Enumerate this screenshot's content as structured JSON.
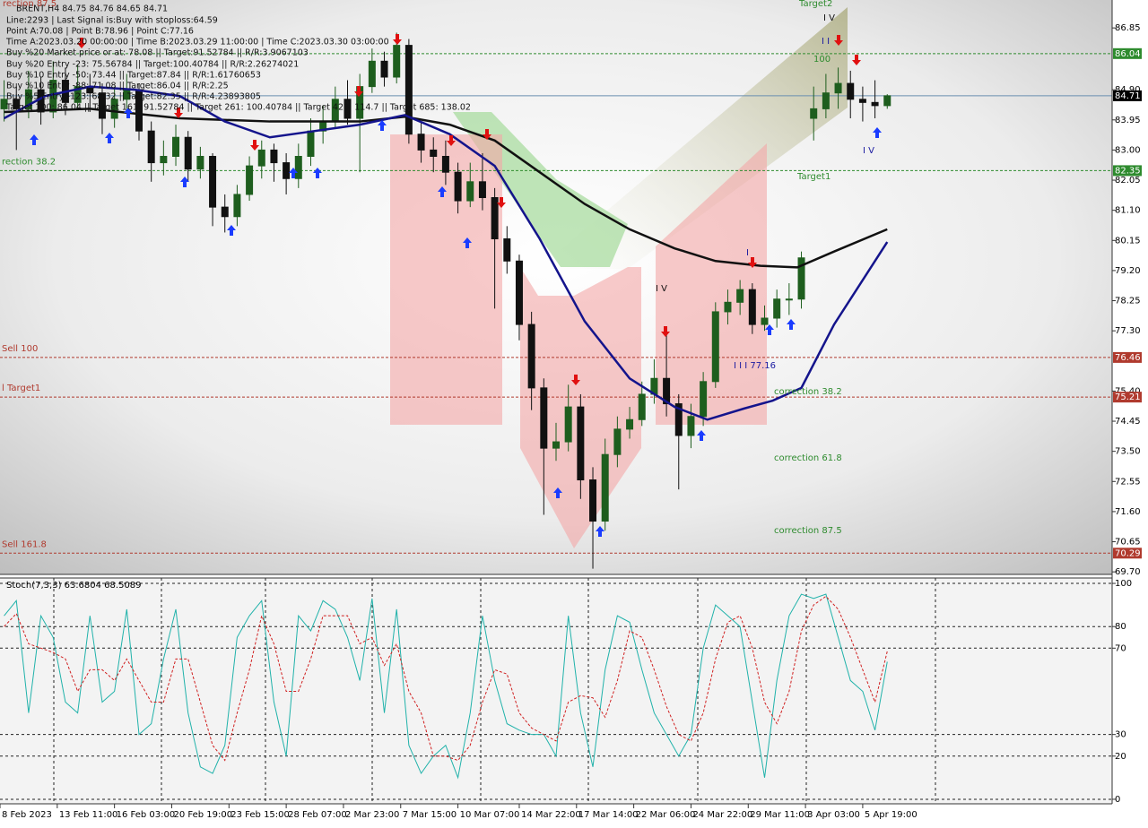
{
  "header": {
    "info": [
      "BRENT,H4  84.75 84.76 84.65 84.71",
      "Line:2293 | Last Signal is:Buy with stoploss:64.59",
      "Point A:70.08 | Point B:78.96 | Point C:77.16",
      "Time A:2023.03.20 00:00:00 | Time B:2023.03.29 11:00:00 | Time C:2023.03.30 03:00:00",
      "Buy %20 Market price or at: 78.08 || Target:91.52784 || R/R:3.9067103",
      "Buy %20 Entry -23: 75.56784 || Target:100.40784 || R/R:2.26274021",
      "Buy %10 Entry -50: 73.44 || Target:87.84 || R/R:1.61760653",
      "Buy %10 Entry -88: 71.08 || Target:86.04 || R/R:2.25",
      "Buy %5 Entry -123: 68.32 || Target:82.35 || R/R:4.23893805",
      "Target 100: 86.04 || Target 161: 91.52784 || Target 261: 100.40784 || Target 423: 114.7 || Target 685: 138.02"
    ]
  },
  "chart_data": [
    {
      "type": "candlestick",
      "x": [
        1,
        4,
        7,
        10,
        13,
        16,
        19,
        22,
        25,
        28,
        31,
        34,
        37,
        40,
        43,
        46,
        49,
        52,
        55,
        58,
        61,
        64,
        67,
        70,
        73,
        76,
        79,
        82,
        85,
        88,
        91,
        94,
        97,
        100,
        103,
        106,
        109,
        112,
        115,
        118,
        121,
        124,
        127,
        130,
        133,
        136,
        139,
        142,
        145,
        148,
        151,
        154,
        157,
        160,
        163,
        166,
        169,
        172,
        175,
        178,
        181,
        184,
        187,
        190,
        193,
        196,
        199,
        202,
        205,
        208,
        211,
        214,
        217
      ],
      "open": [
        84.3,
        84.6,
        84.3,
        84.9,
        84.2,
        85.2,
        84.5,
        85.0,
        84.8,
        84.0,
        84.6,
        84.9,
        83.6,
        82.6,
        82.8,
        83.4,
        82.4,
        82.8,
        81.2,
        80.9,
        81.6,
        82.5,
        83.0,
        82.6,
        82.1,
        82.8,
        83.6,
        83.9,
        84.6,
        84.0,
        85.0,
        85.8,
        85.3,
        86.3,
        83.5,
        83.0,
        82.8,
        82.3,
        81.4,
        82.0,
        81.5,
        80.2,
        79.5,
        77.5,
        75.5,
        73.6,
        73.8,
        74.9,
        72.6,
        71.3,
        73.4,
        74.2,
        74.5,
        75.3,
        75.8,
        75.0,
        74.0,
        74.6,
        75.7,
        77.9,
        78.2,
        78.6,
        77.5,
        77.7,
        78.3,
        78.3,
        84.0,
        84.3,
        84.8,
        85.1,
        84.6,
        84.5,
        84.4
      ],
      "high": [
        85.2,
        85.0,
        85.5,
        85.3,
        85.8,
        85.6,
        85.7,
        85.4,
        85.1,
        85.0,
        85.4,
        85.1,
        83.9,
        83.3,
        83.8,
        83.6,
        83.1,
        82.9,
        81.6,
        81.9,
        82.8,
        83.3,
        83.2,
        82.9,
        83.2,
        84.0,
        84.4,
        85.0,
        85.2,
        85.4,
        86.2,
        86.1,
        86.7,
        86.5,
        83.9,
        83.4,
        83.3,
        82.6,
        82.6,
        82.9,
        81.8,
        80.6,
        79.7,
        77.9,
        75.8,
        74.4,
        75.6,
        75.3,
        73.0,
        73.9,
        74.6,
        74.9,
        75.7,
        76.4,
        77.2,
        75.3,
        75.0,
        76.0,
        78.2,
        78.6,
        78.9,
        78.8,
        78.1,
        78.6,
        78.8,
        79.8,
        85.0,
        85.4,
        85.6,
        85.5,
        85.0,
        85.2,
        84.76
      ],
      "low": [
        83.9,
        83.0,
        84.0,
        83.8,
        84.0,
        84.1,
        84.3,
        84.2,
        83.5,
        83.7,
        84.3,
        83.3,
        82.0,
        82.2,
        82.5,
        82.0,
        82.1,
        80.6,
        80.4,
        80.6,
        81.4,
        82.1,
        82.0,
        81.6,
        81.8,
        82.5,
        83.2,
        83.7,
        83.8,
        82.3,
        84.8,
        85.0,
        85.1,
        83.2,
        82.6,
        82.3,
        81.9,
        81.0,
        81.2,
        81.1,
        78.0,
        79.1,
        77.0,
        74.8,
        71.5,
        73.2,
        73.5,
        72.0,
        69.8,
        71.0,
        73.0,
        73.9,
        74.3,
        75.0,
        74.6,
        72.3,
        73.6,
        74.3,
        75.5,
        77.5,
        77.8,
        77.2,
        77.3,
        77.4,
        77.8,
        78.0,
        83.3,
        84.0,
        84.3,
        84.0,
        83.9,
        84.0,
        84.3
      ],
      "close": [
        84.6,
        84.3,
        84.9,
        84.2,
        85.2,
        84.5,
        85.0,
        84.8,
        84.0,
        84.6,
        84.9,
        83.6,
        82.6,
        82.8,
        83.4,
        82.4,
        82.8,
        81.2,
        80.9,
        81.6,
        82.5,
        83.0,
        82.6,
        82.1,
        82.8,
        83.6,
        83.9,
        84.6,
        84.0,
        85.0,
        85.8,
        85.3,
        86.3,
        83.5,
        83.0,
        82.8,
        82.3,
        81.4,
        82.0,
        81.5,
        80.2,
        79.5,
        77.5,
        75.5,
        73.6,
        73.8,
        74.9,
        72.6,
        71.3,
        73.4,
        74.2,
        74.5,
        75.3,
        75.8,
        75.0,
        74.0,
        74.6,
        75.7,
        77.9,
        78.2,
        78.6,
        77.5,
        77.7,
        78.3,
        78.3,
        79.6,
        84.3,
        84.8,
        85.1,
        84.6,
        84.5,
        84.4,
        84.71
      ],
      "up_color": "#1e5e1e",
      "down_color": "#111111",
      "series": [
        {
          "color": "#111111",
          "x": [
            1,
            22,
            44,
            66,
            88,
            99,
            110,
            121,
            132,
            143,
            154,
            165,
            175,
            186,
            195,
            204,
            217
          ],
          "values": [
            84.2,
            84.3,
            84.0,
            83.9,
            83.9,
            84.05,
            83.8,
            83.3,
            82.3,
            81.3,
            80.5,
            79.9,
            79.5,
            79.35,
            79.3,
            79.8,
            80.5
          ]
        },
        {
          "color": "#14148c",
          "x": [
            1,
            11,
            22,
            33,
            44,
            55,
            66,
            77,
            88,
            99,
            110,
            121,
            132,
            143,
            154,
            165,
            173,
            182,
            189,
            196,
            204,
            217
          ],
          "values": [
            84.0,
            84.7,
            85.0,
            84.9,
            84.7,
            83.9,
            83.4,
            83.6,
            83.8,
            84.1,
            83.5,
            82.5,
            80.2,
            77.6,
            75.8,
            74.9,
            74.5,
            74.85,
            75.1,
            75.5,
            77.5,
            80.1
          ]
        }
      ],
      "levels": [
        {
          "value": 86.04,
          "color": "#2e8b2e",
          "box": "#2e8b2e"
        },
        {
          "value": 84.71,
          "color": "#6a8fb0",
          "box": "#000000"
        },
        {
          "value": 82.35,
          "color": "#2e8b2e",
          "box": "#2e8b2e",
          "text": "rection 38.2"
        },
        {
          "value": 76.46,
          "color": "#b03a2e",
          "box": "#b03a2e",
          "text": "Sell 100"
        },
        {
          "value": 75.21,
          "color": "#b03a2e",
          "box": "#b03a2e",
          "text": "l Target1"
        },
        {
          "value": 70.29,
          "color": "#b03a2e",
          "box": "#b03a2e",
          "text": "Sell 161.8"
        }
      ],
      "annotations": [
        {
          "text": "Target2",
          "color": "#2e8b2e"
        },
        {
          "text": "I V",
          "color": "#111111"
        },
        {
          "text": "I I",
          "color": "#1a1aa0"
        },
        {
          "text": "100",
          "color": "#2e8b2e"
        },
        {
          "text": "Target1",
          "color": "#2e8b2e"
        },
        {
          "text": "I V",
          "color": "#1a1aa0"
        },
        {
          "text": "I",
          "color": "#1a1aa0"
        },
        {
          "text": "I V",
          "color": "#111111"
        },
        {
          "text": "I I I 77.16",
          "color": "#1a1aa0"
        },
        {
          "text": "correction 38.2",
          "color": "#2e8b2e"
        },
        {
          "text": "correction 61.8",
          "color": "#2e8b2e"
        },
        {
          "text": "correction 87.5",
          "color": "#2e8b2e"
        },
        {
          "text": "rection 87.5",
          "color": "#b03a2e"
        }
      ],
      "xlim": [
        0,
        272
      ],
      "ylim": [
        69.62,
        87.73
      ],
      "yticks": [
        86.85,
        {
          "value": 84.9,
          "label": "84.90"
        },
        83.95,
        {
          "value": 83,
          "label": "83.00"
        },
        82.05,
        {
          "value": 81.1,
          "label": "81.10"
        },
        80.15,
        {
          "value": 79.2,
          "label": "79.20"
        },
        78.25,
        {
          "value": 77.3,
          "label": "77.30"
        },
        {
          "value": 75.4,
          "label": "75.40"
        },
        74.45,
        {
          "value": 73.5,
          "label": "73.50"
        },
        72.55,
        {
          "value": 71.6,
          "label": "71.60"
        },
        70.65,
        {
          "value": 69.7,
          "label": "69.70"
        }
      ],
      "xticks": [
        {
          "value": 0,
          "label": "8 Feb 2023"
        },
        {
          "value": 14,
          "label": "13 Feb 11:00"
        },
        {
          "value": 28,
          "label": "16 Feb 03:00"
        },
        {
          "value": 42,
          "label": "20 Feb 19:00"
        },
        {
          "value": 56,
          "label": "23 Feb 15:00"
        },
        {
          "value": 70,
          "label": "28 Feb 07:00"
        },
        {
          "value": 84,
          "label": "2 Mar 23:00"
        },
        {
          "value": 98,
          "label": "7 Mar 15:00"
        },
        {
          "value": 112,
          "label": "10 Mar 07:00"
        },
        {
          "value": 127,
          "label": "14 Mar 22:00"
        },
        {
          "value": 141,
          "label": "17 Mar 14:00"
        },
        {
          "value": 155,
          "label": "22 Mar 06:00"
        },
        {
          "value": 169,
          "label": "24 Mar 22:00"
        },
        {
          "value": 183,
          "label": "29 Mar 11:00"
        },
        {
          "value": 197,
          "label": "3 Apr 03:00"
        },
        {
          "value": 211,
          "label": "5 Apr 19:00"
        }
      ]
    },
    {
      "type": "line",
      "title": "Stoch(7,3,3) 63.6804 68.5089",
      "x": [
        1,
        4,
        7,
        10,
        13,
        16,
        19,
        22,
        25,
        28,
        31,
        34,
        37,
        40,
        43,
        46,
        49,
        52,
        55,
        58,
        61,
        64,
        67,
        70,
        73,
        76,
        79,
        82,
        85,
        88,
        91,
        94,
        97,
        100,
        103,
        106,
        109,
        112,
        115,
        118,
        121,
        124,
        127,
        130,
        133,
        136,
        139,
        142,
        145,
        148,
        151,
        154,
        157,
        160,
        163,
        166,
        169,
        172,
        175,
        178,
        181,
        184,
        187,
        190,
        193,
        196,
        199,
        202,
        205,
        208,
        211,
        214,
        217
      ],
      "series": [
        {
          "color": "#20b2aa",
          "dashed": false,
          "values": [
            85,
            92,
            40,
            85,
            75,
            45,
            40,
            85,
            45,
            50,
            88,
            30,
            35,
            65,
            88,
            40,
            15,
            12,
            25,
            75,
            85,
            92,
            45,
            20,
            85,
            78,
            92,
            88,
            75,
            55,
            93,
            40,
            88,
            25,
            12,
            20,
            25,
            10,
            40,
            85,
            55,
            35,
            32,
            30,
            30,
            20,
            85,
            40,
            15,
            60,
            85,
            82,
            60,
            40,
            30,
            20,
            30,
            70,
            90,
            85,
            80,
            45,
            10,
            55,
            85,
            95,
            93,
            95,
            75,
            55,
            50,
            32,
            63.6804
          ]
        },
        {
          "color": "#d02020",
          "dashed": true,
          "values": [
            80,
            86,
            72,
            70,
            68,
            65,
            50,
            60,
            60,
            55,
            65,
            55,
            45,
            45,
            65,
            65,
            45,
            25,
            18,
            40,
            60,
            85,
            72,
            50,
            50,
            65,
            85,
            85,
            85,
            72,
            75,
            62,
            72,
            50,
            40,
            20,
            20,
            18,
            25,
            45,
            60,
            58,
            40,
            33,
            30,
            27,
            45,
            48,
            47,
            38,
            55,
            78,
            75,
            60,
            43,
            30,
            27,
            40,
            65,
            82,
            85,
            70,
            45,
            35,
            50,
            78,
            90,
            94,
            88,
            75,
            60,
            45,
            68.5089
          ]
        }
      ],
      "xlim": [
        0,
        272
      ],
      "ylim": [
        -2.1,
        102.5
      ],
      "yticks": [
        0,
        20,
        30,
        70,
        80,
        100
      ],
      "grid": true
    }
  ]
}
